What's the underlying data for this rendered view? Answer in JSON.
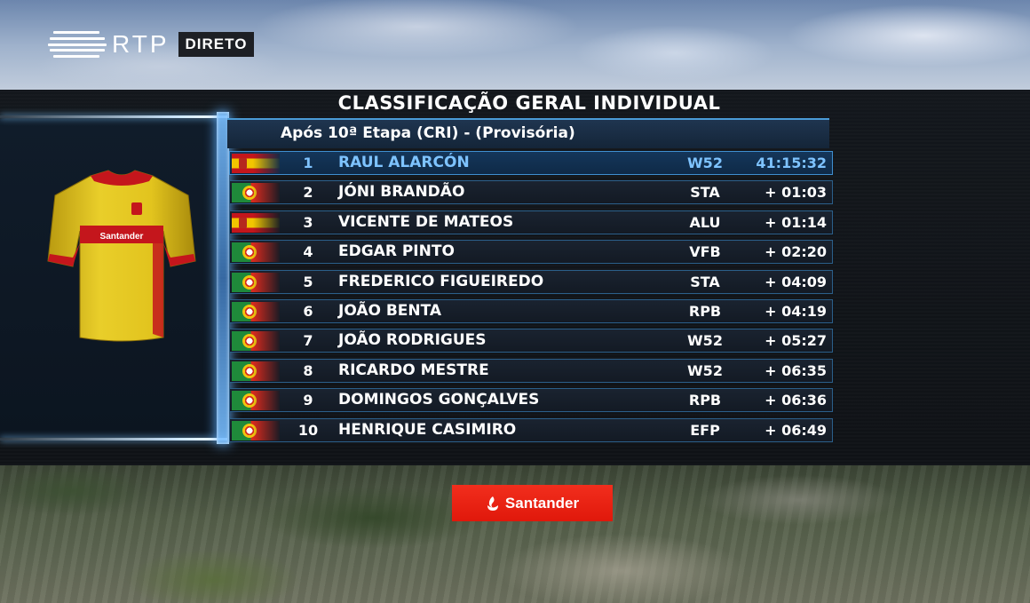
{
  "broadcaster": {
    "logo_text": "RTP",
    "live_badge": "DIRETO"
  },
  "panel": {
    "title": "CLASSIFICAÇÃO GERAL INDIVIDUAL",
    "subtitle": "Após 10ª Etapa (CRI) - (Provisória)"
  },
  "jersey": {
    "sponsor_text": "Santander",
    "color": "#e6c71a",
    "trim_color": "#c4161c"
  },
  "standings": [
    {
      "pos": "1",
      "flag": "es",
      "name": "RAUL ALARCÓN",
      "team": "W52",
      "time": "41:15:32"
    },
    {
      "pos": "2",
      "flag": "pt",
      "name": "JÓNI BRANDÃO",
      "team": "STA",
      "time": "+ 01:03"
    },
    {
      "pos": "3",
      "flag": "es",
      "name": "VICENTE DE MATEOS",
      "team": "ALU",
      "time": "+ 01:14"
    },
    {
      "pos": "4",
      "flag": "pt",
      "name": "EDGAR PINTO",
      "team": "VFB",
      "time": "+ 02:20"
    },
    {
      "pos": "5",
      "flag": "pt",
      "name": "FREDERICO FIGUEIREDO",
      "team": "STA",
      "time": "+ 04:09"
    },
    {
      "pos": "6",
      "flag": "pt",
      "name": "JOÃO BENTA",
      "team": "RPB",
      "time": "+ 04:19"
    },
    {
      "pos": "7",
      "flag": "pt",
      "name": "JOÃO RODRIGUES",
      "team": "W52",
      "time": "+ 05:27"
    },
    {
      "pos": "8",
      "flag": "pt",
      "name": "RICARDO MESTRE",
      "team": "W52",
      "time": "+ 06:35"
    },
    {
      "pos": "9",
      "flag": "pt",
      "name": "DOMINGOS GONÇALVES",
      "team": "RPB",
      "time": "+ 06:36"
    },
    {
      "pos": "10",
      "flag": "pt",
      "name": "HENRIQUE CASIMIRO",
      "team": "EFP",
      "time": "+ 06:49"
    }
  ],
  "sponsor": {
    "label": "Santander",
    "color": "#ec2314"
  },
  "colors": {
    "leader_highlight": "#7ec3ff",
    "row_border": "#2b5f8a",
    "glow": "#5fb0ff"
  }
}
